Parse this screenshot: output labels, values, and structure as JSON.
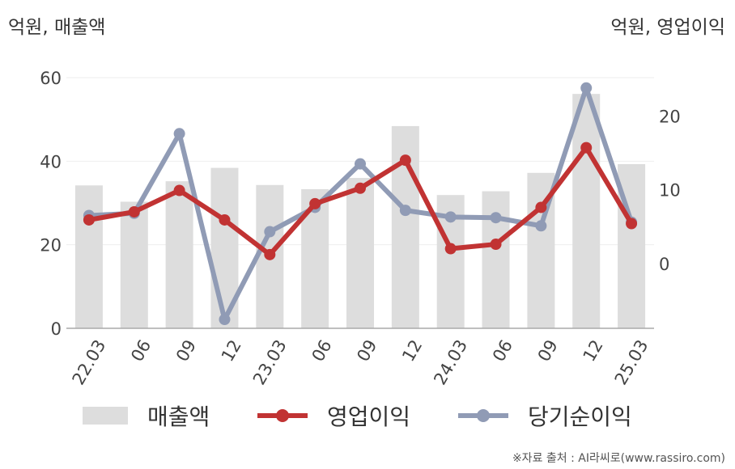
{
  "units": {
    "left": "억원, 매출액",
    "right": "억원, 영업이익"
  },
  "source": "※자료 출처 : AI라씨로(www.rassiro.com)",
  "colors": {
    "revenue": "#dddddd",
    "operating_profit": "#c13333",
    "net_income": "#909bb5"
  },
  "legend": [
    {
      "label": "매출액",
      "kind": "bar",
      "color": "#dddddd"
    },
    {
      "label": "영업이익",
      "kind": "line",
      "color": "#c13333"
    },
    {
      "label": "당기순이익",
      "kind": "line",
      "color": "#909bb5"
    }
  ],
  "chart_data": {
    "type": "bar+line",
    "categories": [
      "22.03",
      "06",
      "09",
      "12",
      "23.03",
      "06",
      "09",
      "12",
      "24.03",
      "06",
      "09",
      "12",
      "25.03"
    ],
    "left_axis": {
      "ylim": [
        0,
        60
      ],
      "ticks": [
        0,
        20,
        40,
        60
      ]
    },
    "right_axis": {
      "ylim": [
        -8.8,
        25.2
      ],
      "ticks": [
        0,
        10,
        20
      ]
    },
    "grid": true,
    "legend_position": "bottom",
    "series": [
      {
        "name": "매출액",
        "type": "bar",
        "axis": "left",
        "values": [
          34.2,
          30.3,
          35.2,
          38.4,
          34.3,
          33.3,
          36.0,
          48.4,
          31.9,
          32.8,
          37.2,
          56.1,
          39.3
        ]
      },
      {
        "name": "영업이익",
        "type": "line",
        "axis": "right",
        "values": [
          5.9,
          7.0,
          9.9,
          5.9,
          1.2,
          8.1,
          10.2,
          14.0,
          2.0,
          2.6,
          7.6,
          15.7,
          5.4
        ]
      },
      {
        "name": "당기순이익",
        "type": "line",
        "axis": "right",
        "values": [
          6.5,
          6.8,
          17.6,
          -7.6,
          4.3,
          7.6,
          13.5,
          7.2,
          6.3,
          6.2,
          5.1,
          23.8,
          5.6
        ]
      }
    ]
  }
}
